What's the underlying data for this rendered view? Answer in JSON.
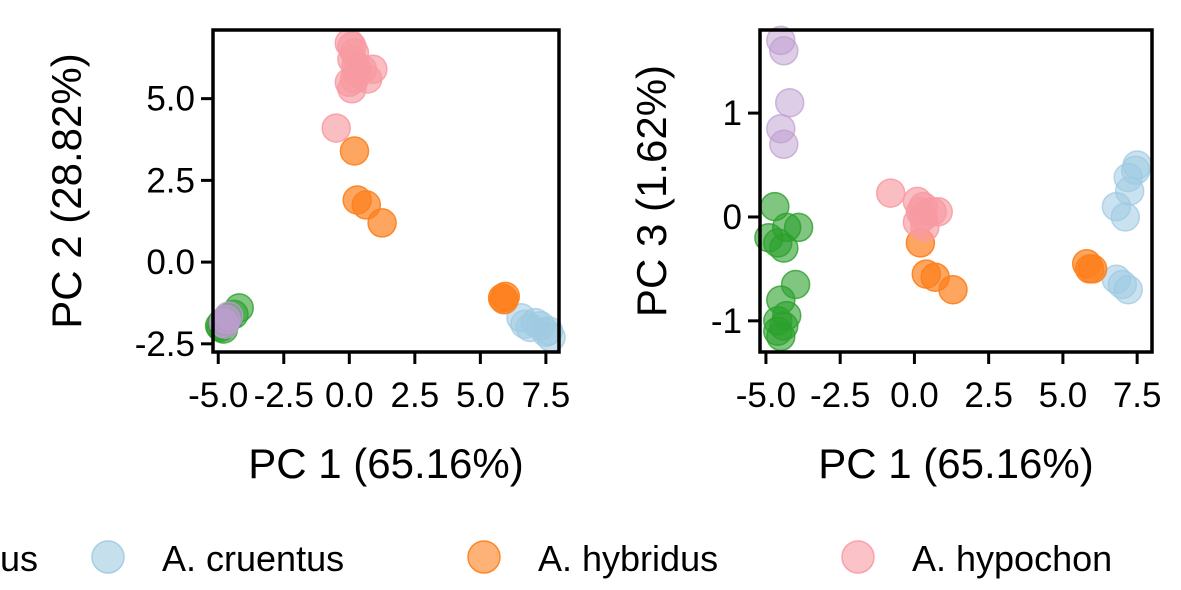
{
  "chart_data": [
    {
      "type": "scatter",
      "xlabel": "PC 1 (65.16%)",
      "ylabel": "PC 2 (28.82%)",
      "xlim": [
        -5.2,
        8.0
      ],
      "ylim": [
        -2.75,
        7.1
      ],
      "xticks": [
        -5.0,
        -2.5,
        0.0,
        2.5,
        5.0,
        7.5
      ],
      "xtick_labels": [
        "-5.0",
        "-2.5",
        "0.0",
        "2.5",
        "5.0",
        "7.5"
      ],
      "yticks": [
        -2.5,
        0.0,
        2.5,
        5.0
      ],
      "ytick_labels": [
        "-2.5",
        "0.0",
        "2.5",
        "5.0"
      ],
      "grid": false,
      "series": [
        {
          "key": "green",
          "color": "#2ca02c",
          "alpha": 0.6,
          "points": [
            [
              -4.9,
              -2.0
            ],
            [
              -4.95,
              -1.95
            ],
            [
              -4.85,
              -1.85
            ],
            [
              -4.6,
              -1.7
            ],
            [
              -4.2,
              -1.4
            ],
            [
              -4.4,
              -1.6
            ],
            [
              -4.8,
              -2.05
            ]
          ]
        },
        {
          "key": "purple",
          "color": "#bd9ccf",
          "alpha": 0.6,
          "points": [
            [
              -4.8,
              -1.85
            ],
            [
              -4.7,
              -1.75
            ],
            [
              -4.6,
              -1.65
            ],
            [
              -4.75,
              -1.9
            ]
          ]
        },
        {
          "key": "blue",
          "color": "#9ecae1",
          "alpha": 0.55,
          "points": [
            [
              6.55,
              -1.7
            ],
            [
              6.7,
              -1.9
            ],
            [
              6.9,
              -2.0
            ],
            [
              7.1,
              -1.85
            ],
            [
              7.3,
              -1.95
            ],
            [
              7.5,
              -2.15
            ],
            [
              7.7,
              -2.3
            ],
            [
              7.6,
              -2.1
            ]
          ]
        },
        {
          "key": "orange",
          "color": "#fd7f1c",
          "alpha": 0.7,
          "points": [
            [
              5.85,
              -1.1
            ],
            [
              5.9,
              -1.15
            ],
            [
              5.95,
              -1.05
            ],
            [
              0.2,
              3.4
            ],
            [
              0.3,
              1.9
            ],
            [
              0.65,
              1.75
            ],
            [
              1.25,
              1.2
            ]
          ]
        },
        {
          "key": "pink",
          "color": "#f89aa2",
          "alpha": 0.65,
          "points": [
            [
              -0.5,
              4.1
            ],
            [
              0.0,
              6.7
            ],
            [
              0.1,
              6.6
            ],
            [
              0.2,
              6.4
            ],
            [
              0.1,
              6.2
            ],
            [
              0.25,
              6.0
            ],
            [
              0.3,
              5.8
            ],
            [
              0.2,
              5.6
            ],
            [
              0.1,
              5.3
            ],
            [
              0.5,
              5.9
            ],
            [
              0.7,
              5.6
            ],
            [
              0.9,
              5.9
            ],
            [
              0.0,
              5.5
            ]
          ]
        }
      ]
    },
    {
      "type": "scatter",
      "xlabel": "PC 1 (65.16%)",
      "ylabel": "PC 3 (1.62%)",
      "xlim": [
        -5.2,
        8.0
      ],
      "ylim": [
        -1.3,
        1.8
      ],
      "xticks": [
        -5.0,
        -2.5,
        0.0,
        2.5,
        5.0,
        7.5
      ],
      "xtick_labels": [
        "-5.0",
        "-2.5",
        "0.0",
        "2.5",
        "5.0",
        "7.5"
      ],
      "yticks": [
        -1,
        0,
        1
      ],
      "ytick_labels": [
        "-1",
        "0",
        "1"
      ],
      "grid": false,
      "series": [
        {
          "key": "green",
          "color": "#2ca02c",
          "alpha": 0.6,
          "points": [
            [
              -4.7,
              0.1
            ],
            [
              -3.9,
              -0.1
            ],
            [
              -4.3,
              -0.1
            ],
            [
              -4.9,
              -0.2
            ],
            [
              -4.6,
              -0.25
            ],
            [
              -4.4,
              -0.3
            ],
            [
              -4.0,
              -0.65
            ],
            [
              -4.5,
              -0.8
            ],
            [
              -4.3,
              -0.95
            ],
            [
              -4.6,
              -1.0
            ],
            [
              -4.4,
              -1.05
            ],
            [
              -4.6,
              -1.1
            ],
            [
              -4.5,
              -1.15
            ]
          ]
        },
        {
          "key": "purple",
          "color": "#bd9ccf",
          "alpha": 0.5,
          "points": [
            [
              -4.5,
              1.7
            ],
            [
              -4.4,
              1.6
            ],
            [
              -4.2,
              1.1
            ],
            [
              -4.5,
              0.85
            ],
            [
              -4.4,
              0.7
            ]
          ]
        },
        {
          "key": "blue",
          "color": "#9ecae1",
          "alpha": 0.55,
          "points": [
            [
              7.5,
              0.5
            ],
            [
              7.45,
              0.45
            ],
            [
              7.2,
              0.38
            ],
            [
              7.25,
              0.25
            ],
            [
              6.8,
              0.1
            ],
            [
              7.1,
              0.0
            ],
            [
              6.8,
              -0.6
            ],
            [
              7.0,
              -0.65
            ],
            [
              7.2,
              -0.7
            ]
          ]
        },
        {
          "key": "orange",
          "color": "#fd7f1c",
          "alpha": 0.7,
          "points": [
            [
              5.8,
              -0.45
            ],
            [
              5.9,
              -0.5
            ],
            [
              6.0,
              -0.5
            ],
            [
              0.2,
              -0.25
            ],
            [
              0.4,
              -0.55
            ],
            [
              0.7,
              -0.58
            ],
            [
              1.3,
              -0.7
            ]
          ]
        },
        {
          "key": "pink",
          "color": "#f89aa2",
          "alpha": 0.65,
          "points": [
            [
              -0.8,
              0.23
            ],
            [
              0.1,
              0.15
            ],
            [
              0.3,
              0.1
            ],
            [
              0.2,
              0.05
            ],
            [
              0.3,
              0.0
            ],
            [
              0.6,
              0.05
            ],
            [
              0.1,
              -0.05
            ],
            [
              0.35,
              -0.1
            ],
            [
              0.8,
              0.05
            ]
          ]
        }
      ]
    }
  ],
  "legend": {
    "placement": "bottom",
    "entries": [
      {
        "key": "purple",
        "label": "us",
        "color": "#bd9ccf",
        "alpha": 0.6
      },
      {
        "key": "blue",
        "label": "A. cruentus",
        "color": "#9ecae1",
        "alpha": 0.6
      },
      {
        "key": "orange",
        "label": "A. hybridus",
        "color": "#fd7f1c",
        "alpha": 0.6
      },
      {
        "key": "pink",
        "label": "A. hypochon",
        "color": "#f89aa2",
        "alpha": 0.6
      }
    ]
  }
}
